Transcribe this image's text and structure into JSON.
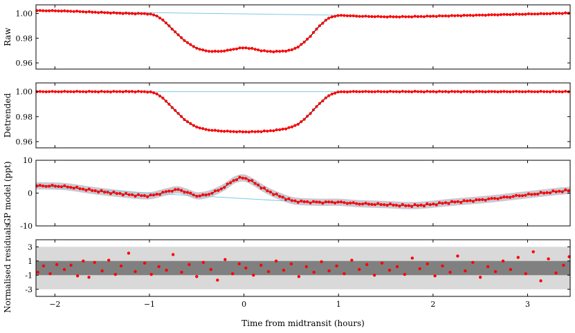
{
  "figure": {
    "xlabel": "Time from midtransit (hours)",
    "x_ticks": [
      -2,
      -1,
      0,
      1,
      2,
      3
    ],
    "xlim": [
      -2.2,
      3.45
    ]
  },
  "chart_data": [
    {
      "type": "line",
      "panel": "raw",
      "ylabel": "Raw",
      "ylim": [
        0.955,
        1.007
      ],
      "y_ticks": [
        0.96,
        0.98,
        1.0
      ],
      "y_tick_labels": [
        "0.96",
        "0.98",
        "1.00"
      ],
      "colors": {
        "points": "#ff0000",
        "model": "#000000",
        "baseline": "#7ec8e3"
      },
      "baseline": {
        "x": [
          -2.2,
          1.0
        ],
        "y": [
          1.002,
          0.9986
        ]
      },
      "series": [
        {
          "x": [
            -2.2,
            -1.9,
            -1.5,
            -1.2,
            -1.0,
            -0.9,
            -0.8,
            -0.7,
            -0.6,
            -0.5,
            -0.4,
            -0.3,
            -0.2,
            -0.1,
            0.0,
            0.1,
            0.2,
            0.3,
            0.4,
            0.5,
            0.6,
            0.7,
            0.8,
            0.9,
            1.0,
            1.2,
            1.6,
            2.0,
            2.4,
            2.8,
            3.2,
            3.45
          ],
          "y": [
            1.0023,
            1.002,
            1.0008,
            1.0,
            0.9996,
            0.997,
            0.9905,
            0.983,
            0.9765,
            0.972,
            0.9698,
            0.9693,
            0.9698,
            0.9712,
            0.9722,
            0.9713,
            0.9698,
            0.9692,
            0.9695,
            0.9705,
            0.9745,
            0.9815,
            0.99,
            0.9962,
            0.9983,
            0.9978,
            0.9973,
            0.9978,
            0.9985,
            0.9992,
            0.9998,
            1.0003
          ]
        }
      ]
    },
    {
      "type": "line",
      "panel": "detrended",
      "ylabel": "Detrended",
      "ylim": [
        0.955,
        1.007
      ],
      "y_ticks": [
        0.96,
        0.98,
        1.0
      ],
      "y_tick_labels": [
        "0.96",
        "0.98",
        "1.00"
      ],
      "colors": {
        "points": "#ff0000",
        "model": "#000000",
        "baseline": "#7ec8e3"
      },
      "series": [
        {
          "x": [
            -2.2,
            -1.5,
            -1.0,
            -0.9,
            -0.8,
            -0.7,
            -0.6,
            -0.5,
            -0.4,
            -0.3,
            -0.2,
            -0.1,
            0.0,
            0.1,
            0.2,
            0.3,
            0.4,
            0.5,
            0.6,
            0.7,
            0.8,
            0.9,
            1.0,
            1.5,
            2.5,
            3.45
          ],
          "y": [
            1.0,
            1.0,
            0.9998,
            0.9972,
            0.9905,
            0.9828,
            0.976,
            0.9718,
            0.9697,
            0.9688,
            0.9683,
            0.968,
            0.9678,
            0.9679,
            0.9682,
            0.9688,
            0.9698,
            0.9716,
            0.9755,
            0.9825,
            0.9905,
            0.9968,
            0.9997,
            1.0,
            1.0,
            1.0
          ]
        }
      ]
    },
    {
      "type": "line",
      "panel": "gp-model",
      "ylabel": "GP model (ppt)",
      "ylim": [
        -10,
        10
      ],
      "y_ticks": [
        -10,
        0,
        10
      ],
      "y_tick_labels": [
        "-10",
        "0",
        "10"
      ],
      "colors": {
        "points": "#ff0000",
        "model": "#000000",
        "band": "#c8c8d2",
        "baseline": "#7ec8e3"
      },
      "baseline": {
        "x": [
          -2.2,
          0.5
        ],
        "y": [
          2.0,
          -2.5
        ]
      },
      "series": [
        {
          "x": [
            -2.2,
            -1.9,
            -1.6,
            -1.3,
            -1.0,
            -0.8,
            -0.7,
            -0.6,
            -0.5,
            -0.4,
            -0.3,
            -0.2,
            -0.1,
            0.0,
            0.1,
            0.2,
            0.3,
            0.4,
            0.5,
            0.6,
            0.8,
            1.0,
            1.2,
            1.5,
            1.8,
            2.2,
            2.6,
            3.0,
            3.45
          ],
          "y": [
            2.2,
            2.0,
            0.8,
            -0.2,
            -0.8,
            0.5,
            1.0,
            0.2,
            -0.8,
            -0.5,
            0.5,
            2.0,
            4.0,
            4.6,
            3.3,
            1.5,
            0.0,
            -1.2,
            -2.2,
            -2.6,
            -2.8,
            -2.8,
            -3.2,
            -3.5,
            -3.8,
            -2.8,
            -1.8,
            -0.5,
            0.8
          ]
        }
      ]
    },
    {
      "type": "scatter",
      "panel": "residuals",
      "ylabel": "Normalised residuals",
      "ylim": [
        -4,
        4
      ],
      "y_ticks": [
        -3,
        -1,
        1,
        3
      ],
      "y_tick_labels": [
        "-3",
        "-1",
        "1",
        "3"
      ],
      "bands": [
        {
          "from": -3,
          "to": 3,
          "color": "#d9d9d9"
        },
        {
          "from": -1,
          "to": 1,
          "color": "#808080"
        }
      ],
      "colors": {
        "points": "#ff0000"
      },
      "series": [
        {
          "x": [
            -2.18,
            -2.12,
            -2.05,
            -1.98,
            -1.9,
            -1.83,
            -1.76,
            -1.7,
            -1.64,
            -1.58,
            -1.5,
            -1.43,
            -1.36,
            -1.3,
            -1.22,
            -1.15,
            -1.05,
            -0.98,
            -0.9,
            -0.82,
            -0.75,
            -0.66,
            -0.58,
            -0.5,
            -0.43,
            -0.35,
            -0.28,
            -0.2,
            -0.12,
            -0.05,
            0.02,
            0.1,
            0.18,
            0.26,
            0.34,
            0.42,
            0.5,
            0.58,
            0.66,
            0.74,
            0.82,
            0.9,
            0.98,
            1.06,
            1.14,
            1.22,
            1.3,
            1.38,
            1.46,
            1.54,
            1.62,
            1.7,
            1.78,
            1.86,
            1.94,
            2.02,
            2.1,
            2.18,
            2.26,
            2.34,
            2.42,
            2.5,
            2.58,
            2.66,
            2.74,
            2.82,
            2.9,
            2.98,
            3.06,
            3.14,
            3.22,
            3.3,
            3.38,
            3.44
          ],
          "y": [
            -0.6,
            0.3,
            -0.8,
            0.5,
            -0.2,
            0.4,
            -1.1,
            1.0,
            -1.3,
            0.8,
            -0.4,
            1.1,
            -0.9,
            0.3,
            2.1,
            -0.5,
            0.7,
            -0.9,
            0.2,
            -0.3,
            1.9,
            -0.6,
            0.5,
            -1.2,
            0.8,
            -0.2,
            -1.7,
            1.2,
            -0.8,
            0.6,
            0.0,
            -1.0,
            0.4,
            -0.5,
            1.0,
            -0.3,
            0.6,
            -1.2,
            0.2,
            -0.6,
            0.9,
            -0.4,
            0.3,
            -0.8,
            1.1,
            -0.2,
            0.5,
            -1.0,
            0.7,
            -0.3,
            0.2,
            -0.9,
            1.4,
            -0.1,
            0.6,
            -1.1,
            0.3,
            -0.6,
            1.7,
            -0.4,
            0.8,
            -1.3,
            0.2,
            -0.5,
            1.0,
            -0.2,
            1.5,
            -0.8,
            2.3,
            -1.8,
            1.3,
            -0.7,
            0.4,
            1.6
          ]
        }
      ]
    }
  ]
}
